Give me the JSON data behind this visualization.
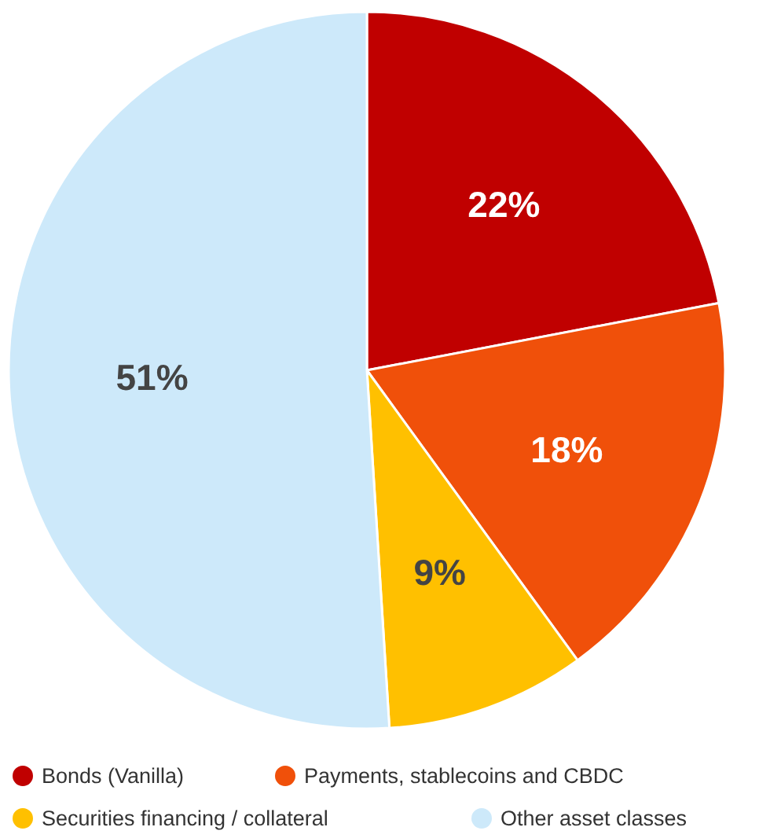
{
  "chart_data": {
    "type": "pie",
    "categories": [
      "Bonds (Vanilla)",
      "Payments, stablecoins and CBDC",
      "Securities financing / collateral",
      "Other asset classes"
    ],
    "values": [
      22,
      18,
      9,
      51
    ],
    "colors": [
      "#c00000",
      "#f0500a",
      "#ffc000",
      "#cde9fa"
    ],
    "value_labels": [
      "22%",
      "18%",
      "9%",
      "51%"
    ],
    "legend": "bottom"
  }
}
